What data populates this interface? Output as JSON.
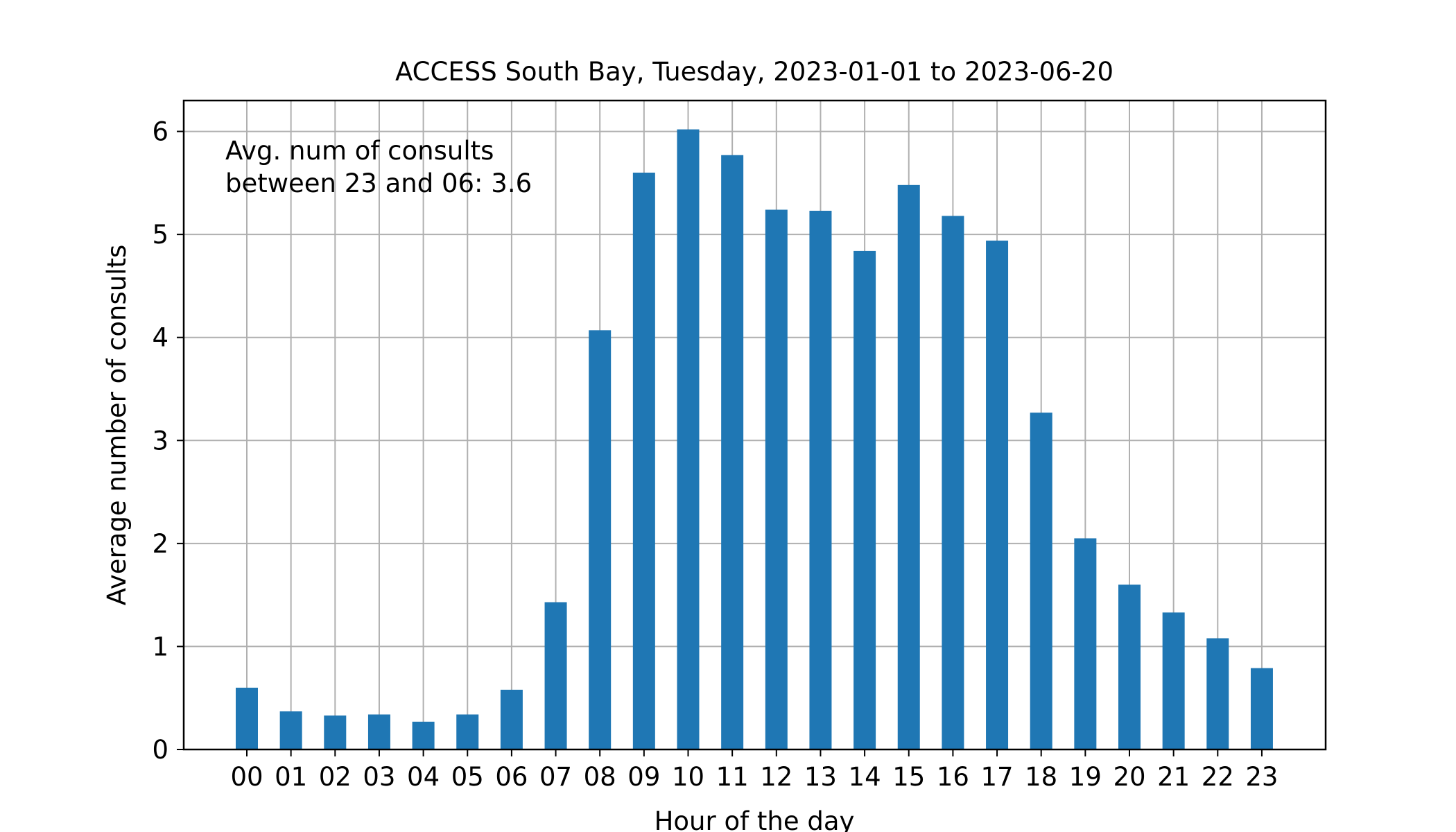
{
  "chart_data": {
    "type": "bar",
    "title": "ACCESS South Bay, Tuesday, 2023-01-01 to 2023-06-20",
    "xlabel": "Hour of the day",
    "ylabel": "Average number of consults",
    "categories": [
      "00",
      "01",
      "02",
      "03",
      "04",
      "05",
      "06",
      "07",
      "08",
      "09",
      "10",
      "11",
      "12",
      "13",
      "14",
      "15",
      "16",
      "17",
      "18",
      "19",
      "20",
      "21",
      "22",
      "23"
    ],
    "values": [
      0.6,
      0.37,
      0.33,
      0.34,
      0.27,
      0.34,
      0.58,
      1.43,
      4.07,
      5.6,
      6.02,
      5.77,
      5.24,
      5.23,
      4.84,
      5.48,
      5.18,
      4.94,
      3.27,
      2.05,
      1.6,
      1.33,
      1.08,
      0.79
    ],
    "ylim": [
      0,
      6.3
    ],
    "yticks": [
      0,
      1,
      2,
      3,
      4,
      5,
      6
    ],
    "grid": true,
    "annotation": [
      "Avg. num of consults",
      "between 23 and 06: 3.6"
    ],
    "colors": {
      "bar": "#1f77b4",
      "grid": "#b0b0b0",
      "axis": "#000000"
    }
  }
}
